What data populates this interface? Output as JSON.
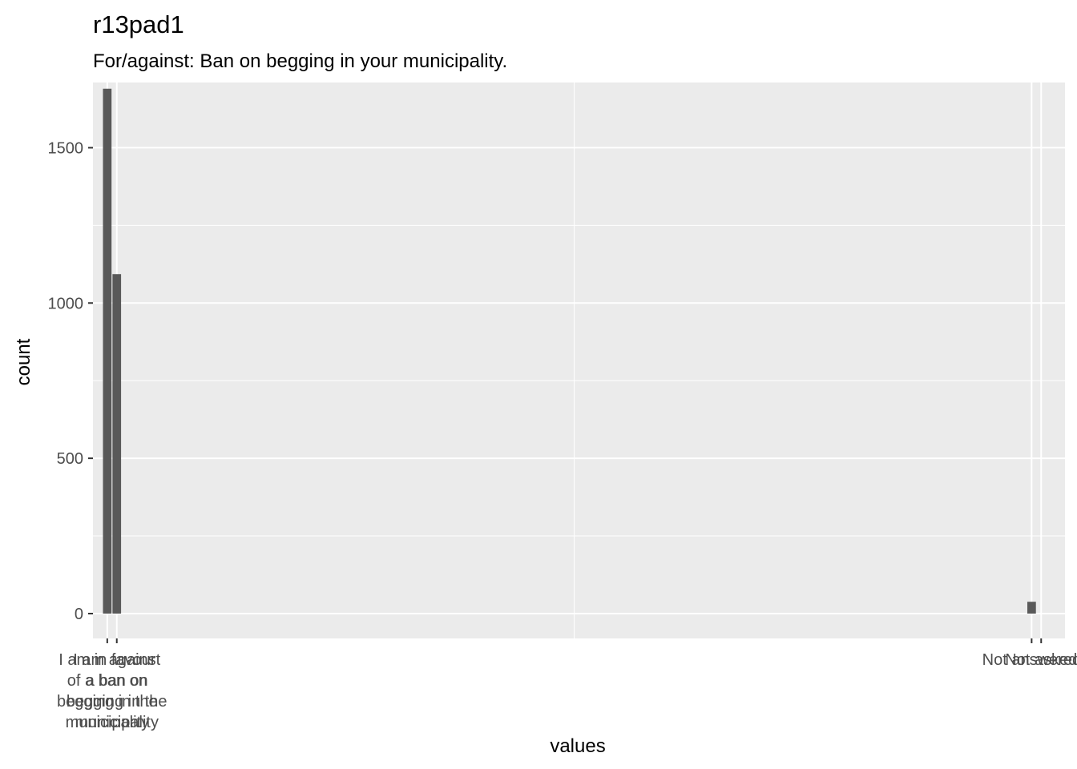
{
  "chart_data": {
    "type": "bar",
    "title": "r13pad1",
    "subtitle": "For/against: Ban on begging in your municipality.",
    "xlabel": "values",
    "ylabel": "count",
    "ylim": [
      -80,
      1710
    ],
    "y_ticks": [
      0,
      500,
      1000,
      1500
    ],
    "x_ticks": [
      {
        "value": 1,
        "lines": [
          "I am in favour",
          "of a ban on",
          "begging in the",
          "municipality"
        ]
      },
      {
        "value": 2,
        "lines": [
          "I am against",
          "a ban on",
          "begging in the",
          "municipality"
        ]
      },
      {
        "value": 98,
        "lines": [
          "Not answered"
        ]
      },
      {
        "value": 99,
        "lines": [
          "Not asked"
        ]
      }
    ],
    "xlim": [
      -0.5,
      101.5
    ],
    "bars": [
      {
        "x": 1,
        "value": 1690
      },
      {
        "x": 2,
        "value": 1093
      },
      {
        "x": 98,
        "value": 38
      },
      {
        "x": 99,
        "value": 0
      }
    ],
    "grid": true,
    "colors": {
      "panel": "#ebebeb",
      "grid_major": "#ffffff",
      "bar": "#595959"
    }
  }
}
